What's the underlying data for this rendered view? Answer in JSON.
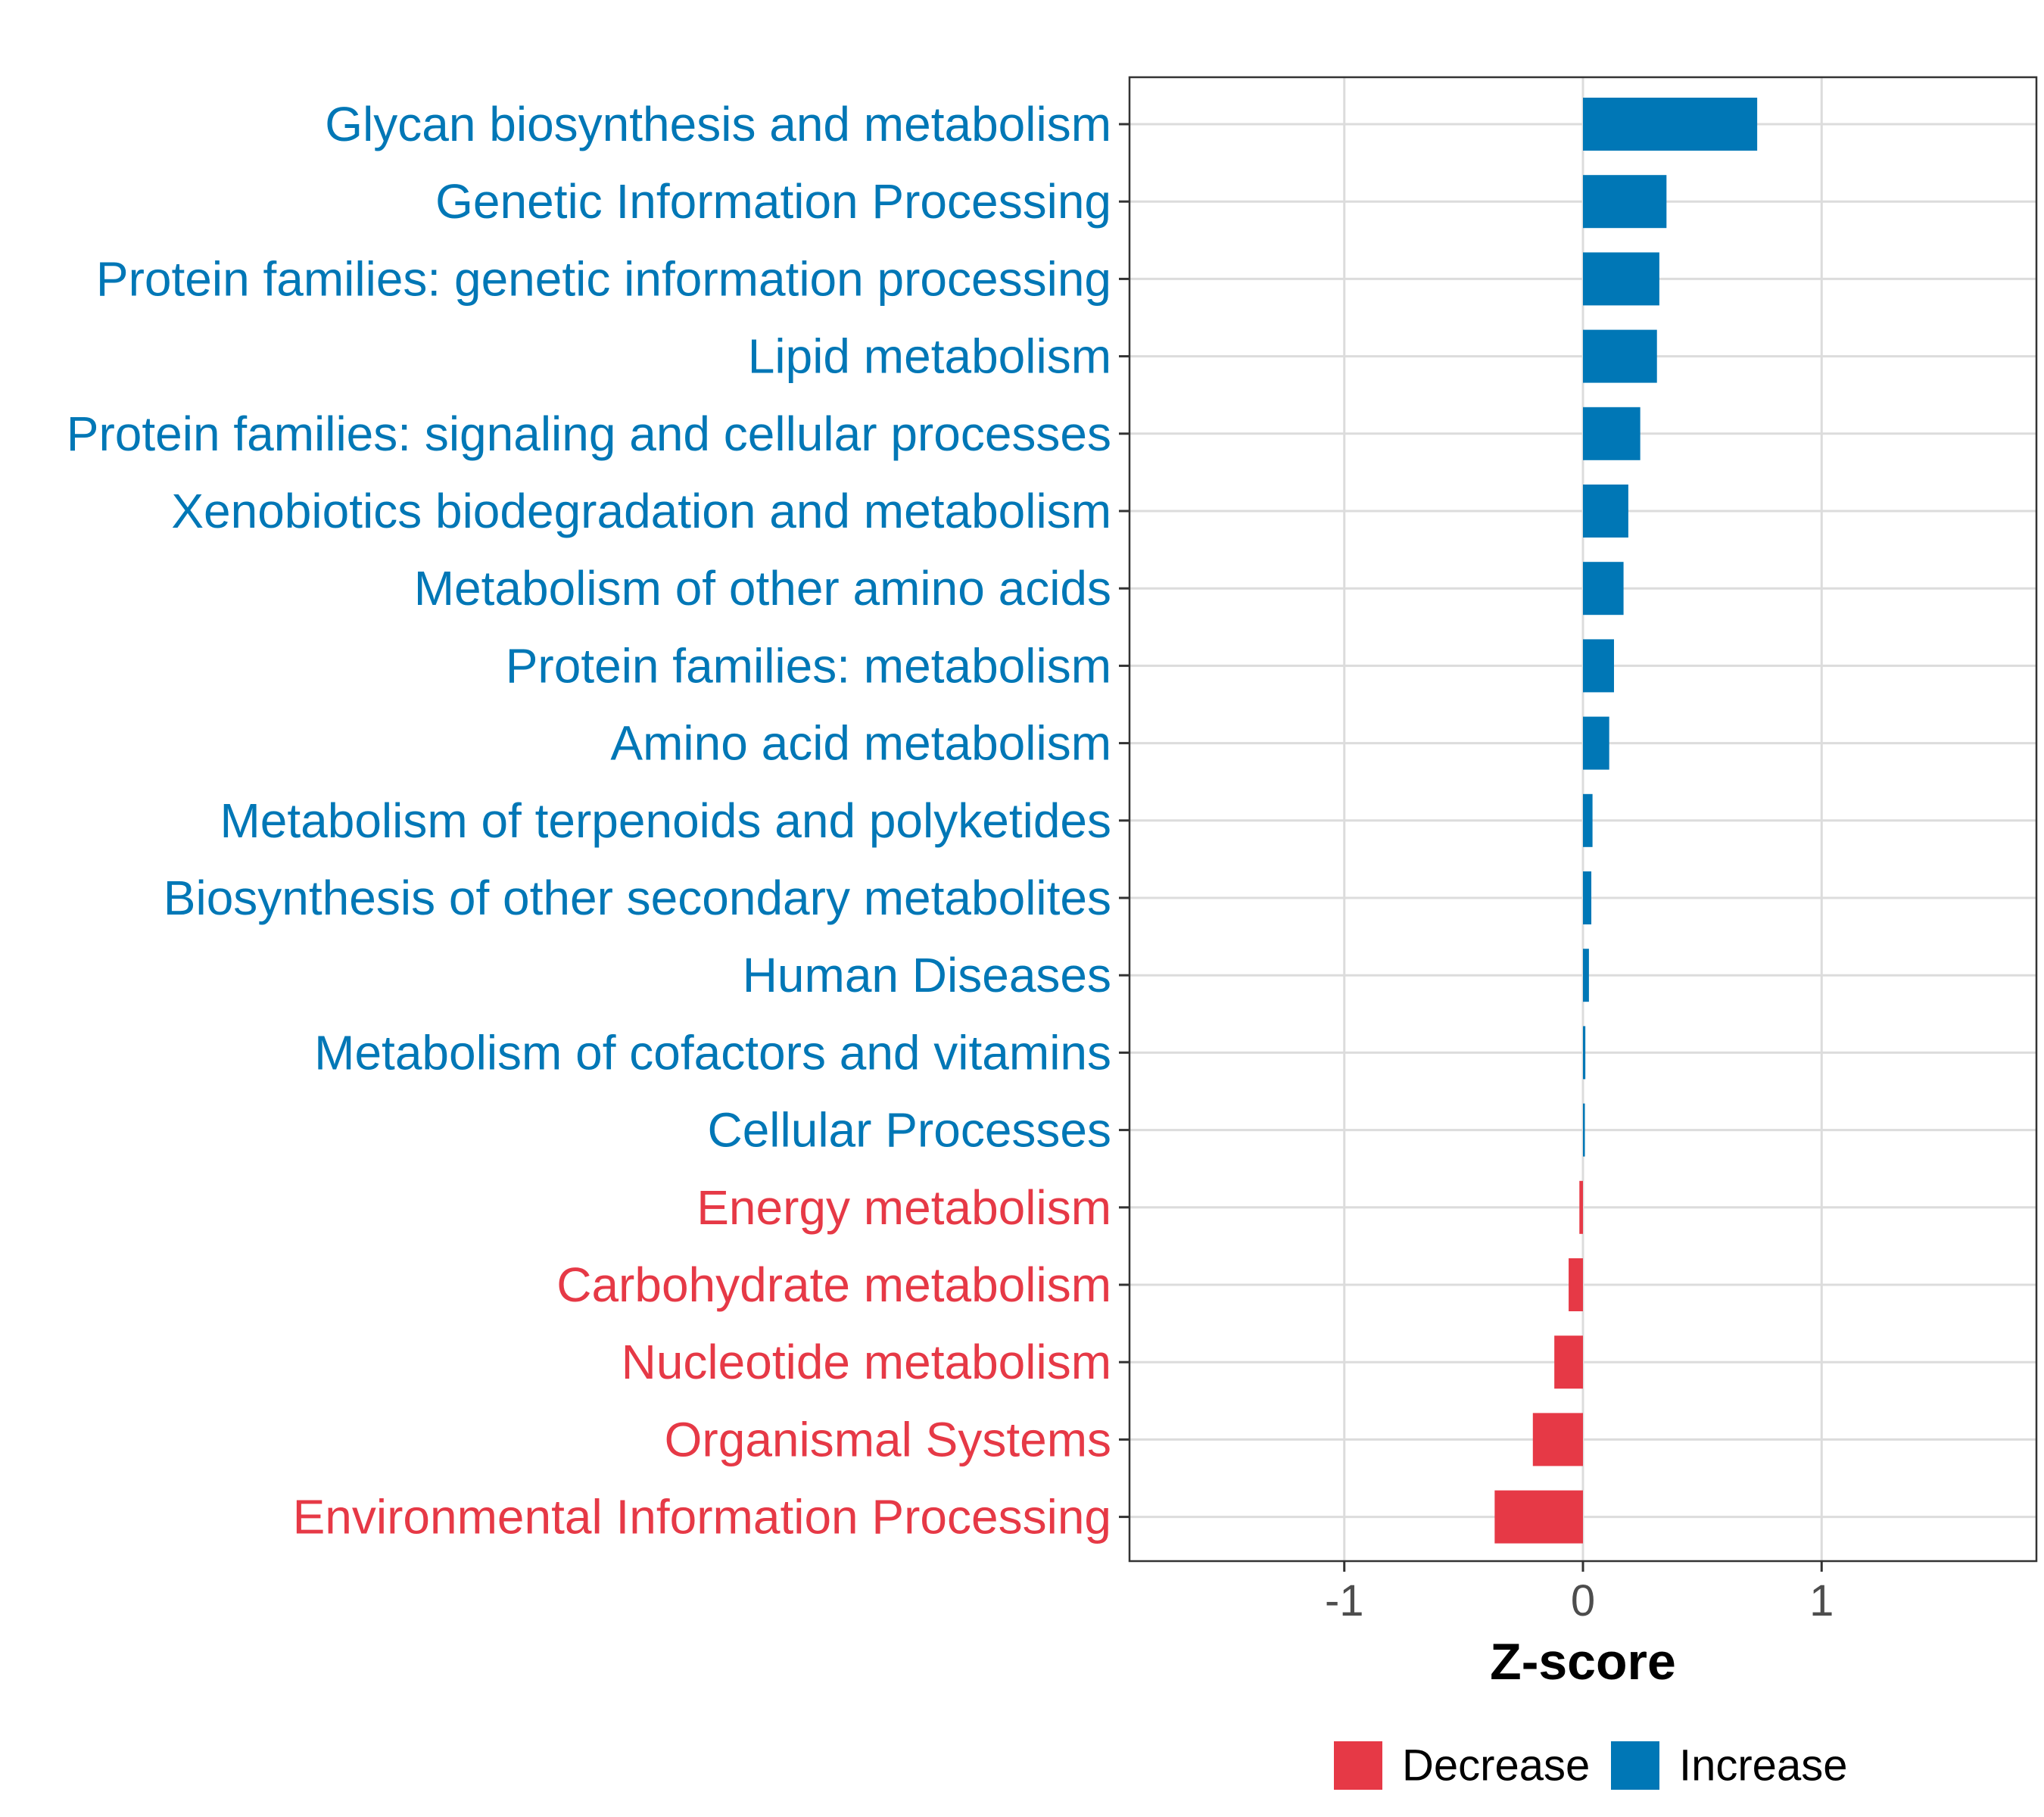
{
  "chart_data": {
    "type": "bar",
    "orientation": "horizontal",
    "title": "",
    "xlabel": "Z-score",
    "ylabel": "",
    "xlim": [
      -1.9,
      1.9
    ],
    "xticks": [
      -1,
      0,
      1
    ],
    "xtick_labels": [
      "-1",
      "0",
      "1"
    ],
    "grid": true,
    "legend_position": "bottom",
    "categories": [
      "Glycan biosynthesis and metabolism",
      "Genetic Information Processing",
      "Protein families: genetic information processing",
      "Lipid metabolism",
      "Protein families: signaling and cellular processes",
      "Xenobiotics biodegradation and metabolism",
      "Metabolism of other amino acids",
      "Protein families: metabolism",
      "Amino acid metabolism",
      "Metabolism of terpenoids and polyketides",
      "Biosynthesis of other secondary metabolites",
      "Human Diseases",
      "Metabolism of cofactors and vitamins",
      "Cellular Processes",
      "Energy metabolism",
      "Carbohydrate metabolism",
      "Nucleotide metabolism",
      "Organismal Systems",
      "Environmental Information Processing"
    ],
    "values": [
      0.73,
      0.35,
      0.32,
      0.31,
      0.24,
      0.19,
      0.17,
      0.13,
      0.11,
      0.04,
      0.035,
      0.025,
      0.01,
      0.008,
      -0.015,
      -0.06,
      -0.12,
      -0.21,
      -0.37
    ],
    "groups": [
      "Increase",
      "Increase",
      "Increase",
      "Increase",
      "Increase",
      "Increase",
      "Increase",
      "Increase",
      "Increase",
      "Increase",
      "Increase",
      "Increase",
      "Increase",
      "Increase",
      "Decrease",
      "Decrease",
      "Decrease",
      "Decrease",
      "Decrease"
    ],
    "legend": [
      {
        "name": "Decrease",
        "color": "#e63946"
      },
      {
        "name": "Increase",
        "color": "#0077b6"
      }
    ]
  }
}
